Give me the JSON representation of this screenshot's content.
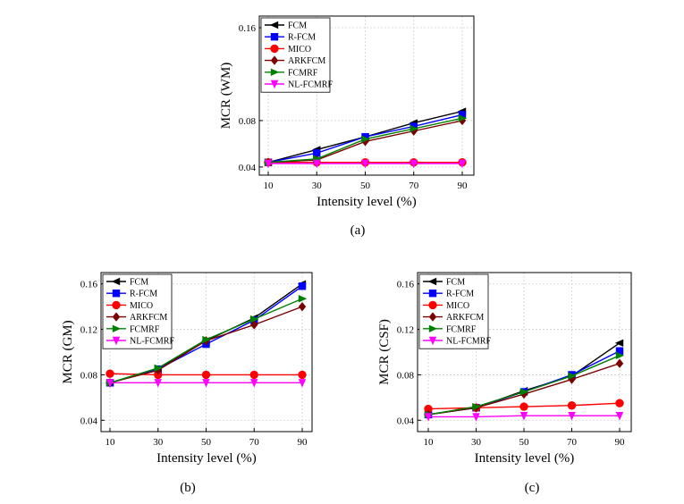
{
  "chart_data": [
    {
      "type": "line",
      "caption": "(a)",
      "xlabel": "Intensity level (%)",
      "ylabel": "MCR (WM)",
      "x": [
        10,
        30,
        50,
        70,
        90
      ],
      "xticks": [
        "10",
        "30",
        "50",
        "70",
        "90"
      ],
      "yticks": [
        "0.04",
        "0.08",
        "0.16"
      ],
      "ytick_values": [
        0.04,
        0.08,
        0.16
      ],
      "ylim": [
        0.033,
        0.17
      ],
      "grid": true,
      "legend_position": "top-left",
      "series": [
        {
          "name": "FCM",
          "color": "#000000",
          "marker": "triangle-left",
          "values": [
            0.044,
            0.055,
            0.066,
            0.078,
            0.088
          ]
        },
        {
          "name": "R-FCM",
          "color": "#0000ff",
          "marker": "square",
          "values": [
            0.044,
            0.052,
            0.066,
            0.075,
            0.085
          ]
        },
        {
          "name": "MICO",
          "color": "#ff0000",
          "marker": "circle",
          "values": [
            0.044,
            0.044,
            0.044,
            0.044,
            0.044
          ]
        },
        {
          "name": "ARKFCM",
          "color": "#7b0000",
          "marker": "diamond",
          "values": [
            0.044,
            0.046,
            0.062,
            0.071,
            0.08
          ]
        },
        {
          "name": "FCMRF",
          "color": "#008000",
          "marker": "triangle-right",
          "values": [
            0.044,
            0.047,
            0.064,
            0.073,
            0.082
          ]
        },
        {
          "name": "NL-FCMRF",
          "color": "#ff00ff",
          "marker": "triangle-down",
          "values": [
            0.043,
            0.043,
            0.043,
            0.043,
            0.043
          ]
        }
      ]
    },
    {
      "type": "line",
      "caption": "(b)",
      "xlabel": "Intensity level (%)",
      "ylabel": "MCR (GM)",
      "x": [
        10,
        30,
        50,
        70,
        90
      ],
      "xticks": [
        "10",
        "30",
        "50",
        "70",
        "90"
      ],
      "yticks": [
        "0.04",
        "0.08",
        "0.12",
        "0.16"
      ],
      "ytick_values": [
        0.04,
        0.08,
        0.12,
        0.16
      ],
      "ylim": [
        0.03,
        0.17
      ],
      "grid": true,
      "legend_position": "top-left",
      "series": [
        {
          "name": "FCM",
          "color": "#000000",
          "marker": "triangle-left",
          "values": [
            0.073,
            0.085,
            0.11,
            0.13,
            0.16
          ]
        },
        {
          "name": "R-FCM",
          "color": "#0000ff",
          "marker": "square",
          "values": [
            0.073,
            0.085,
            0.107,
            0.128,
            0.158
          ]
        },
        {
          "name": "MICO",
          "color": "#ff0000",
          "marker": "circle",
          "values": [
            0.081,
            0.08,
            0.08,
            0.08,
            0.08
          ]
        },
        {
          "name": "ARKFCM",
          "color": "#7b0000",
          "marker": "diamond",
          "values": [
            0.073,
            0.084,
            0.11,
            0.124,
            0.14
          ]
        },
        {
          "name": "FCMRF",
          "color": "#008000",
          "marker": "triangle-right",
          "values": [
            0.073,
            0.086,
            0.111,
            0.129,
            0.147
          ]
        },
        {
          "name": "NL-FCMRF",
          "color": "#ff00ff",
          "marker": "triangle-down",
          "values": [
            0.073,
            0.073,
            0.073,
            0.073,
            0.073
          ]
        }
      ]
    },
    {
      "type": "line",
      "caption": "(c)",
      "xlabel": "Intensity level (%)",
      "ylabel": "MCR (CSF)",
      "x": [
        10,
        30,
        50,
        70,
        90
      ],
      "xticks": [
        "10",
        "30",
        "50",
        "70",
        "90"
      ],
      "yticks": [
        "0.04",
        "0.08",
        "0.12",
        "0.16"
      ],
      "ytick_values": [
        0.04,
        0.08,
        0.12,
        0.16
      ],
      "ylim": [
        0.03,
        0.17
      ],
      "grid": true,
      "legend_position": "top-left",
      "series": [
        {
          "name": "FCM",
          "color": "#000000",
          "marker": "triangle-left",
          "values": [
            0.045,
            0.051,
            0.066,
            0.079,
            0.108
          ]
        },
        {
          "name": "R-FCM",
          "color": "#0000ff",
          "marker": "square",
          "values": [
            0.045,
            0.051,
            0.065,
            0.08,
            0.101
          ]
        },
        {
          "name": "MICO",
          "color": "#ff0000",
          "marker": "circle",
          "values": [
            0.05,
            0.051,
            0.052,
            0.053,
            0.055
          ]
        },
        {
          "name": "ARKFCM",
          "color": "#7b0000",
          "marker": "diamond",
          "values": [
            0.045,
            0.051,
            0.063,
            0.076,
            0.09
          ]
        },
        {
          "name": "FCMRF",
          "color": "#008000",
          "marker": "triangle-right",
          "values": [
            0.045,
            0.052,
            0.065,
            0.079,
            0.097
          ]
        },
        {
          "name": "NL-FCMRF",
          "color": "#ff00ff",
          "marker": "triangle-down",
          "values": [
            0.043,
            0.043,
            0.044,
            0.044,
            0.044
          ]
        }
      ]
    }
  ]
}
